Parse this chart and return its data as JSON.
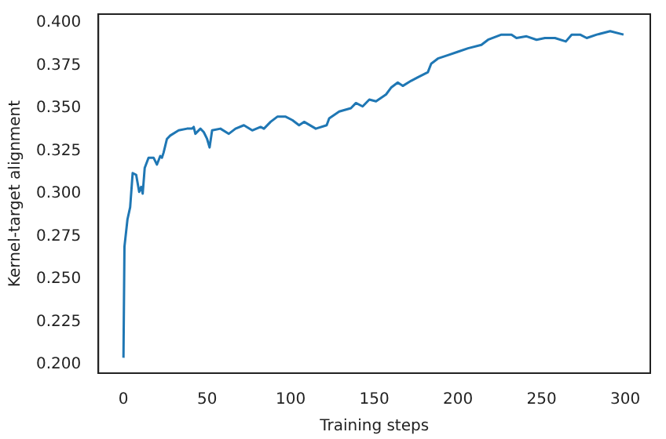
{
  "chart_data": {
    "type": "line",
    "xlabel": "Training steps",
    "ylabel": "Kernel-target alignment",
    "xlim": [
      -15,
      315
    ],
    "xticks": [
      0,
      50,
      100,
      150,
      200,
      250,
      300
    ],
    "ylim": [
      0.195,
      0.405
    ],
    "yticks": [
      {
        "value": 0.2,
        "label": "0.200"
      },
      0.225,
      {
        "value": 0.25,
        "label": "0.250"
      },
      0.275,
      {
        "value": 0.3,
        "label": "0.300"
      },
      0.325,
      {
        "value": 0.35,
        "label": "0.350"
      },
      0.375,
      {
        "value": 0.4,
        "label": "0.400"
      }
    ],
    "grid": false,
    "legend": false,
    "marker": "none",
    "line_style": "solid",
    "series": [
      {
        "color": "#1f77b4",
        "x": [
          0,
          0.6,
          2.4,
          4,
          5.5,
          7.6,
          9.4,
          10.6,
          11.5,
          12.7,
          15,
          18,
          20,
          22,
          23,
          24,
          26,
          28,
          33,
          38,
          41,
          42,
          43,
          46,
          48,
          50,
          51.5,
          53,
          58,
          63,
          67,
          72,
          77,
          82,
          84,
          88,
          92,
          97,
          101,
          105,
          108,
          115,
          121.5,
          123,
          129,
          136,
          139,
          143,
          147,
          151,
          157,
          160,
          164,
          167,
          172,
          176,
          182,
          184,
          188,
          194,
          200,
          206,
          214,
          218,
          226,
          232,
          235,
          241,
          247,
          252,
          258,
          264.5,
          268,
          273,
          277,
          283,
          291,
          299
        ],
        "values": [
          0.204,
          0.269,
          0.285,
          0.292,
          0.312,
          0.311,
          0.301,
          0.304,
          0.3,
          0.315,
          0.321,
          0.321,
          0.317,
          0.322,
          0.321,
          0.324,
          0.332,
          0.334,
          0.337,
          0.338,
          0.338,
          0.339,
          0.335,
          0.338,
          0.336,
          0.332,
          0.327,
          0.337,
          0.338,
          0.335,
          0.338,
          0.34,
          0.337,
          0.339,
          0.338,
          0.342,
          0.345,
          0.345,
          0.343,
          0.34,
          0.342,
          0.338,
          0.34,
          0.344,
          0.348,
          0.35,
          0.353,
          0.351,
          0.355,
          0.354,
          0.358,
          0.362,
          0.365,
          0.363,
          0.366,
          0.368,
          0.371,
          0.376,
          0.379,
          0.381,
          0.383,
          0.385,
          0.387,
          0.39,
          0.393,
          0.393,
          0.391,
          0.392,
          0.39,
          0.391,
          0.391,
          0.389,
          0.393,
          0.393,
          0.391,
          0.393,
          0.395,
          0.393
        ]
      }
    ]
  }
}
